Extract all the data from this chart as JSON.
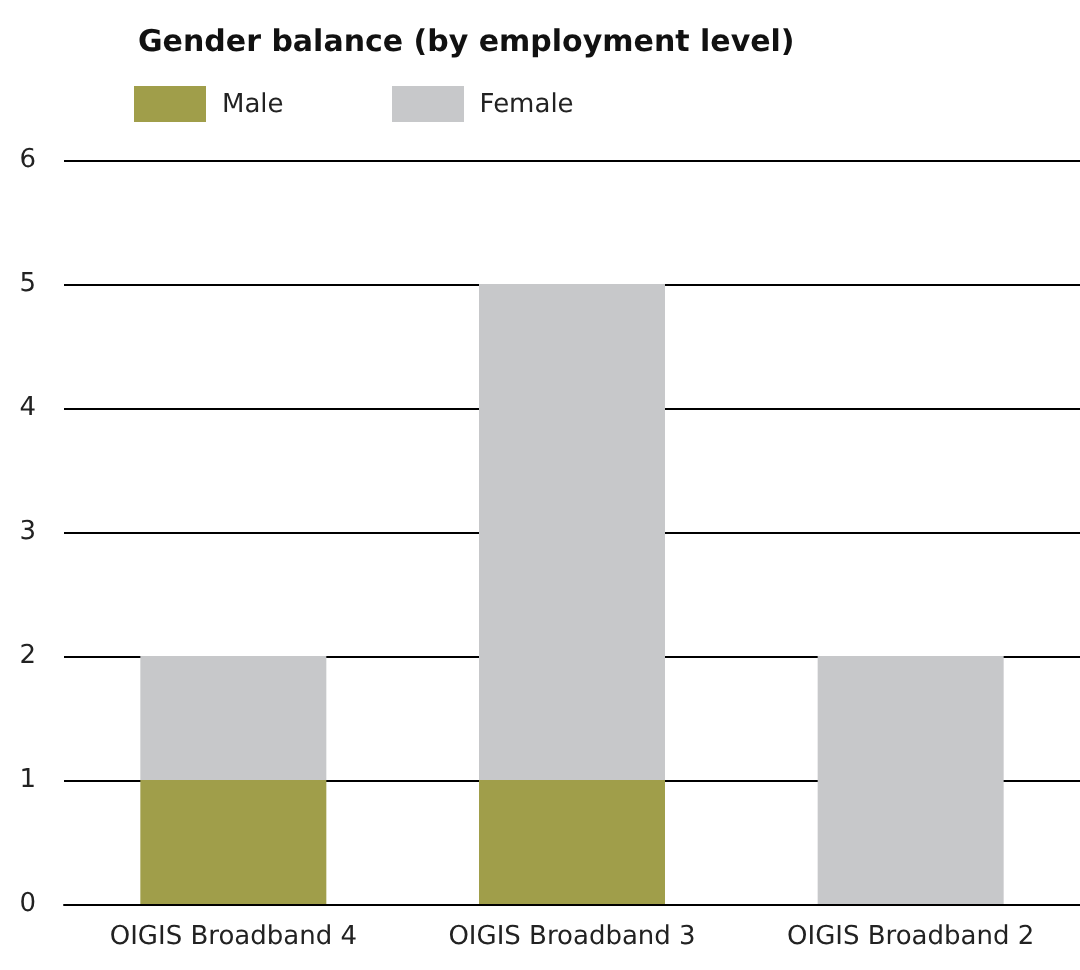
{
  "chart_data": {
    "type": "bar",
    "title": "Gender balance (by employment level)",
    "categories": [
      "OIGIS Broadband 4",
      "OIGIS Broadband 3",
      "OIGIS Broadband 2"
    ],
    "stacked": true,
    "series": [
      {
        "name": "Male",
        "color": "#a09e4a",
        "values": [
          1,
          1,
          0
        ]
      },
      {
        "name": "Female",
        "color": "#c7c8ca",
        "values": [
          1,
          4,
          2
        ]
      }
    ],
    "ylim": [
      0,
      6
    ],
    "yticks": [
      0,
      1,
      2,
      3,
      4,
      5,
      6
    ],
    "grid": "y",
    "legend": "top left"
  }
}
